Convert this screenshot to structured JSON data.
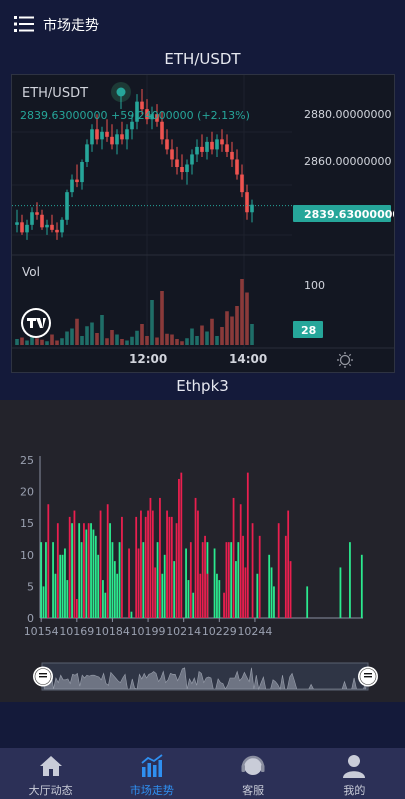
{
  "header": {
    "title": "市场走势"
  },
  "pair_title": "ETH/USDT",
  "tv": {
    "symbol": "ETH/USDT",
    "price_line": "2839.63000000  +59.24000000 (+2.13%)",
    "price_axis": [
      "2880.00000000",
      "2860.00000000"
    ],
    "current_price": "2839.63000000",
    "vol_label": "Vol",
    "vol_axis": "100",
    "current_vol": "28",
    "time_labels": [
      "12:00",
      "14:00"
    ],
    "colors": {
      "up": "#26a69a",
      "down": "#ef5350",
      "badge": "#26a69a"
    },
    "candles": [
      [
        2832,
        2838,
        2829,
        2833
      ],
      [
        2833,
        2836,
        2828,
        2829
      ],
      [
        2829,
        2834,
        2826,
        2832
      ],
      [
        2832,
        2839,
        2830,
        2837
      ],
      [
        2837,
        2841,
        2834,
        2836
      ],
      [
        2836,
        2838,
        2830,
        2831
      ],
      [
        2831,
        2834,
        2828,
        2832
      ],
      [
        2832,
        2836,
        2829,
        2830
      ],
      [
        2830,
        2833,
        2826,
        2829
      ],
      [
        2829,
        2835,
        2827,
        2834
      ],
      [
        2834,
        2846,
        2832,
        2845
      ],
      [
        2845,
        2852,
        2843,
        2850
      ],
      [
        2850,
        2856,
        2847,
        2849
      ],
      [
        2849,
        2858,
        2846,
        2857
      ],
      [
        2857,
        2866,
        2855,
        2864
      ],
      [
        2864,
        2872,
        2861,
        2870
      ],
      [
        2870,
        2876,
        2864,
        2866
      ],
      [
        2866,
        2871,
        2862,
        2869
      ],
      [
        2869,
        2874,
        2865,
        2867
      ],
      [
        2867,
        2872,
        2862,
        2864
      ],
      [
        2864,
        2870,
        2860,
        2868
      ],
      [
        2868,
        2873,
        2864,
        2866
      ],
      [
        2866,
        2872,
        2862,
        2870
      ],
      [
        2870,
        2876,
        2866,
        2873
      ],
      [
        2873,
        2884,
        2870,
        2881
      ],
      [
        2881,
        2886,
        2876,
        2878
      ],
      [
        2878,
        2882,
        2872,
        2874
      ],
      [
        2874,
        2879,
        2870,
        2876
      ],
      [
        2876,
        2880,
        2871,
        2873
      ],
      [
        2873,
        2877,
        2864,
        2866
      ],
      [
        2866,
        2870,
        2860,
        2862
      ],
      [
        2862,
        2866,
        2855,
        2858
      ],
      [
        2858,
        2863,
        2852,
        2855
      ],
      [
        2855,
        2860,
        2850,
        2853
      ],
      [
        2853,
        2858,
        2848,
        2856
      ],
      [
        2856,
        2862,
        2852,
        2860
      ],
      [
        2860,
        2866,
        2857,
        2863
      ],
      [
        2863,
        2868,
        2859,
        2861
      ],
      [
        2861,
        2867,
        2858,
        2865
      ],
      [
        2865,
        2869,
        2860,
        2862
      ],
      [
        2862,
        2868,
        2859,
        2866
      ],
      [
        2866,
        2870,
        2861,
        2864
      ],
      [
        2864,
        2868,
        2859,
        2861
      ],
      [
        2861,
        2865,
        2855,
        2858
      ],
      [
        2858,
        2862,
        2850,
        2852
      ],
      [
        2852,
        2856,
        2843,
        2845
      ],
      [
        2845,
        2848,
        2834,
        2837
      ],
      [
        2837,
        2842,
        2833,
        2840
      ]
    ],
    "volumes": [
      8,
      10,
      6,
      12,
      9,
      7,
      5,
      14,
      6,
      9,
      18,
      22,
      35,
      12,
      25,
      30,
      16,
      40,
      9,
      20,
      14,
      8,
      6,
      11,
      19,
      28,
      12,
      60,
      10,
      72,
      15,
      14,
      8,
      5,
      9,
      22,
      12,
      26,
      18,
      35,
      12,
      24,
      45,
      38,
      52,
      88,
      70,
      28
    ]
  },
  "chart2": {
    "title": "Ethpk3",
    "y_ticks": [
      "25",
      "20",
      "15",
      "10",
      "5",
      "0"
    ],
    "x_labels": [
      "10154",
      "10169",
      "10184",
      "10199",
      "10214",
      "10229",
      "10244"
    ],
    "colors": {
      "up": "#2bea8f",
      "down": "#ea1f4f"
    },
    "chart_data": {
      "type": "bar",
      "ylim": [
        0,
        25
      ],
      "x_start": 10154,
      "series": [
        {
          "values": [
            12,
            5,
            12,
            0,
            0,
            12,
            7,
            0,
            10,
            10,
            11,
            6,
            0,
            15,
            0,
            0,
            15,
            12,
            0,
            14,
            0,
            15,
            14,
            13,
            10,
            0,
            6,
            4,
            0,
            15,
            12,
            9,
            7,
            12,
            0,
            0,
            0,
            0,
            1,
            0,
            0,
            0,
            0,
            12,
            0,
            0,
            0,
            0,
            0,
            12,
            0,
            7,
            10,
            0,
            0,
            0,
            9,
            0,
            0,
            0,
            0,
            11,
            6,
            0,
            4,
            0,
            0,
            0,
            0,
            0,
            12,
            0,
            0,
            11,
            7,
            6,
            0,
            0,
            0,
            0,
            12,
            0,
            9,
            12,
            0,
            0,
            0,
            0,
            0,
            0,
            0,
            7,
            0,
            0,
            0,
            0,
            10,
            8,
            5,
            0,
            0,
            0,
            0,
            0,
            0,
            0,
            0,
            0,
            0,
            0,
            0,
            0,
            5,
            0,
            0,
            0,
            0,
            0,
            0,
            0,
            0,
            0,
            0,
            0,
            0,
            0,
            8,
            0,
            0,
            0,
            12,
            0,
            0,
            0,
            0,
            10
          ]
        },
        {
          "values": [
            0,
            0,
            0,
            18,
            0,
            0,
            0,
            15,
            0,
            0,
            0,
            0,
            16,
            0,
            17,
            3,
            0,
            0,
            15,
            0,
            15,
            0,
            0,
            0,
            0,
            17,
            0,
            0,
            18,
            0,
            0,
            0,
            0,
            0,
            16,
            0,
            0,
            11,
            0,
            0,
            16,
            11,
            17,
            0,
            16,
            17,
            19,
            17,
            8,
            0,
            19,
            0,
            0,
            17,
            16,
            16,
            0,
            15,
            22,
            23,
            0,
            0,
            0,
            12,
            0,
            19,
            17,
            7,
            12,
            13,
            7,
            0,
            0,
            0,
            0,
            0,
            0,
            4,
            12,
            12,
            0,
            19,
            0,
            0,
            18,
            13,
            8,
            23,
            0,
            15,
            0,
            0,
            13,
            0,
            0,
            0,
            0,
            0,
            0,
            0,
            15,
            0,
            0,
            13,
            17,
            9,
            0,
            0,
            0,
            0,
            0,
            0,
            0,
            0,
            0,
            0,
            0,
            0,
            0,
            0,
            0,
            0,
            0,
            0,
            0,
            0,
            0,
            0,
            0,
            0,
            0,
            0,
            0,
            0,
            0,
            0
          ]
        }
      ]
    },
    "overview_start": "0.0",
    "overview_end": "1.0"
  },
  "nav": [
    {
      "label": "大厅动态",
      "icon": "home-icon",
      "active": false
    },
    {
      "label": "市场走势",
      "icon": "trend-chart-icon",
      "active": true
    },
    {
      "label": "客服",
      "icon": "headset-icon",
      "active": false
    },
    {
      "label": "我的",
      "icon": "user-icon",
      "active": false
    }
  ]
}
